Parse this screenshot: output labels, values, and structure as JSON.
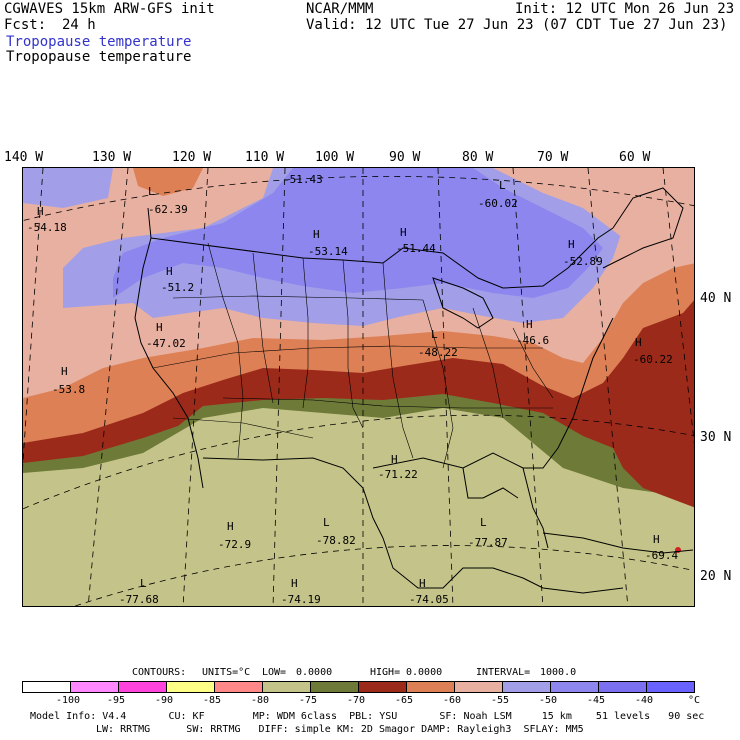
{
  "header": {
    "model": "CGWAVES 15km ARW-GFS init",
    "org": "NCAR/MMM",
    "init": "Init: 12 UTC Mon 26 Jun 23",
    "fcst_label": "Fcst:",
    "fcst_value": "24 h",
    "valid": "Valid: 12 UTC Tue 27 Jun 23 (07 CDT Tue 27 Jun 23)",
    "field_colored": "Tropopause temperature",
    "field_contour": "Tropopause temperature"
  },
  "map": {
    "lon_labels": [
      "140 W",
      "130 W",
      "120 W",
      "110 W",
      "100 W",
      "90 W",
      "80 W",
      "70 W",
      "60 W"
    ],
    "lat_labels": [
      "40 N",
      "30 N",
      "20 N"
    ],
    "extrema": [
      {
        "type": "L",
        "value": "-62.39"
      },
      {
        "type": "H",
        "value": "-54.18"
      },
      {
        "type": "-",
        "value": "-51.43"
      },
      {
        "type": "L",
        "value": "-60.02"
      },
      {
        "type": "H",
        "value": "-53.14"
      },
      {
        "type": "H",
        "value": "-51.44"
      },
      {
        "type": "H",
        "value": "-52.89"
      },
      {
        "type": "H",
        "value": "-51.2"
      },
      {
        "type": "H",
        "value": "-47.02"
      },
      {
        "type": "H",
        "value": "-53.8"
      },
      {
        "type": "L",
        "value": "-48.22"
      },
      {
        "type": "H",
        "value": "-46.6"
      },
      {
        "type": "H",
        "value": "-60.22"
      },
      {
        "type": "H",
        "value": "-71.22"
      },
      {
        "type": "H",
        "value": "-72.9"
      },
      {
        "type": "L",
        "value": "-78.82"
      },
      {
        "type": "L",
        "value": "-77.87"
      },
      {
        "type": "H",
        "value": "-69.4"
      },
      {
        "type": "L",
        "value": "-77.68"
      },
      {
        "type": "H",
        "value": "-74.19"
      },
      {
        "type": "H",
        "value": "-74.05"
      }
    ],
    "colors": {
      "c_lt_minus100": "#ffffff",
      "c_m100_m95": "#ff88ff",
      "c_m95_m90": "#ff44dd",
      "c_m90_m85": "#ffff88",
      "c_m85_m80": "#ff8888",
      "c_m80_m75": "#c4c48a",
      "c_m75_m70": "#6e7a38",
      "c_m70_m65": "#9c2a1a",
      "c_m65_m60": "#dd8055",
      "c_m60_m55": "#e8b0a0",
      "c_m55_m50": "#a29ee8",
      "c_m50_m45": "#8c86ee",
      "c_m45_m40": "#7a70f0",
      "c_gt_minus40": "#6a62ff"
    }
  },
  "contours_line": {
    "contours": "CONTOURS:",
    "units": "UNITS=°C",
    "low": "LOW=",
    "low_val": "0.0000",
    "high": "HIGH=",
    "high_val": "0.0000",
    "interval": "INTERVAL=",
    "interval_val": "1000.0"
  },
  "colorbar": {
    "ticks": [
      "-100",
      "-95",
      "-90",
      "-85",
      "-80",
      "-75",
      "-70",
      "-65",
      "-60",
      "-55",
      "-50",
      "-45",
      "-40",
      "°C"
    ]
  },
  "footer": {
    "line1": "Model Info: V4.4       CU: KF        MP: WDM 6class  PBL: YSU       SF: Noah LSM     15 km    51 levels   90 sec",
    "line2": "LW: RRTMG      SW: RRTMG   DIFF: simple KM: 2D Smagor DAMP: Rayleigh3  SFLAY: MM5"
  }
}
